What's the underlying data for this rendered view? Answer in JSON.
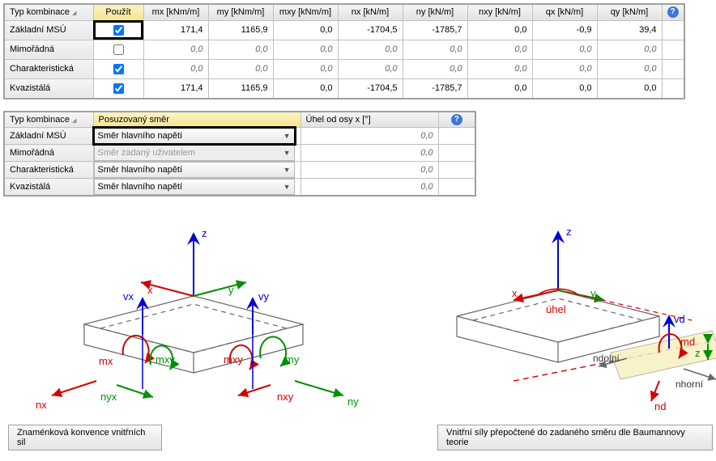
{
  "table1": {
    "headers": {
      "type": "Typ kombinace",
      "use": "Použít",
      "mx": "mx [kNm/m]",
      "my": "my [kNm/m]",
      "mxy": "mxy [kNm/m]",
      "nx": "nx [kN/m]",
      "ny": "ny [kN/m]",
      "nxy": "nxy [kN/m]",
      "qx": "qx [kN/m]",
      "qy": "qy [kN/m]"
    },
    "rows": [
      {
        "label": "Základní MSÚ",
        "use": true,
        "disabled": false,
        "mx": "171,4",
        "my": "1165,9",
        "mxy": "0,0",
        "nx": "-1704,5",
        "ny": "-1785,7",
        "nxy": "0,0",
        "qx": "-0,9",
        "qy": "39,4"
      },
      {
        "label": "Mimořádná",
        "use": false,
        "disabled": false,
        "mx": "0,0",
        "my": "0,0",
        "mxy": "0,0",
        "nx": "0,0",
        "ny": "0,0",
        "nxy": "0,0",
        "qx": "0,0",
        "qy": "0,0"
      },
      {
        "label": "Charakteristická",
        "use": true,
        "disabled": false,
        "mx": "0,0",
        "my": "0,0",
        "mxy": "0,0",
        "nx": "0,0",
        "ny": "0,0",
        "nxy": "0,0",
        "qx": "0,0",
        "qy": "0,0"
      },
      {
        "label": "Kvazistálá",
        "use": true,
        "disabled": false,
        "mx": "171,4",
        "my": "1165,9",
        "mxy": "0,0",
        "nx": "-1704,5",
        "ny": "-1785,7",
        "nxy": "0,0",
        "qx": "0,0",
        "qy": "0,0"
      }
    ]
  },
  "table2": {
    "headers": {
      "type": "Typ kombinace",
      "dir": "Posuzovaný směr",
      "angle": "Úhel od osy x [°]"
    },
    "options": {
      "main": "Směr hlavního napětí",
      "user": "Směr zadaný uživatelem"
    },
    "rows": [
      {
        "label": "Základní MSÚ",
        "dir": "main",
        "disabled": false,
        "angle": "0,0",
        "selected": true
      },
      {
        "label": "Mimořádná",
        "dir": "user",
        "disabled": true,
        "angle": "0,0",
        "selected": false
      },
      {
        "label": "Charakteristická",
        "dir": "main",
        "disabled": false,
        "angle": "0,0",
        "selected": false
      },
      {
        "label": "Kvazistálá",
        "dir": "main",
        "disabled": false,
        "angle": "0,0",
        "selected": false
      }
    ]
  },
  "diagram1": {
    "labels": {
      "z": "z",
      "x": "x",
      "y": "y",
      "vx": "vx",
      "vy": "vy",
      "mx": "mx",
      "mxy": "mxy",
      "my": "my",
      "nx": "nx",
      "nyx": "nyx",
      "nxy": "nxy",
      "ny": "ny"
    },
    "caption": "Znaménková konvence vnitřních sil"
  },
  "diagram2": {
    "labels": {
      "z": "z",
      "x": "x",
      "y": "y",
      "uhel": "úhel",
      "vd": "vd",
      "md": "md",
      "ndolni": "ndolní",
      "nhorni": "nhorní",
      "nd": "nd",
      "zsec": "z"
    },
    "caption": "Vnitřní síly přepočtené do zadaného směru dle Baumannovy teorie"
  },
  "colors": {
    "red": "#d40000",
    "green": "#009000",
    "blue": "#0000d0",
    "grey": "#666666",
    "slabfill": "#f6f0c0",
    "hdr_yellow": "#f4e58c"
  }
}
